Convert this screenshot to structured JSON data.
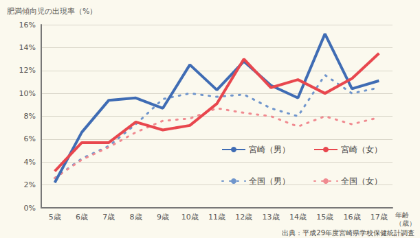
{
  "chart_data": {
    "type": "line",
    "y_label": "肥満傾向児の出現率（%）",
    "x_label": "年齢（歳）",
    "source": "出典：平成29年度宮崎県学校保健統計調査",
    "categories": [
      "5歳",
      "6歳",
      "7歳",
      "8歳",
      "9歳",
      "10歳",
      "11歳",
      "12歳",
      "13歳",
      "14歳",
      "15歳",
      "16歳",
      "17歳"
    ],
    "series": [
      {
        "name": "宮崎（男）",
        "color": "#3f6cb4",
        "line_style": "solid",
        "values": [
          2.2,
          6.6,
          9.4,
          9.6,
          8.7,
          12.5,
          10.3,
          12.8,
          10.7,
          9.6,
          15.2,
          10.4,
          11.1
        ]
      },
      {
        "name": "宮崎（女）",
        "color": "#e8474e",
        "line_style": "solid",
        "values": [
          3.2,
          5.7,
          5.7,
          7.5,
          6.8,
          7.2,
          9.1,
          13.0,
          10.5,
          11.2,
          10.0,
          11.3,
          13.5
        ]
      },
      {
        "name": "全国（男）",
        "color": "#6f95cc",
        "line_style": "dotted",
        "values": [
          2.6,
          4.3,
          5.4,
          7.3,
          9.5,
          10.0,
          9.7,
          9.9,
          8.7,
          8.0,
          11.6,
          10.0,
          10.5
        ]
      },
      {
        "name": "全国（女）",
        "color": "#f08a90",
        "line_style": "dotted",
        "values": [
          2.6,
          4.2,
          5.3,
          6.6,
          7.6,
          7.8,
          8.7,
          8.3,
          8.0,
          7.1,
          8.0,
          7.3,
          7.9
        ]
      }
    ],
    "ylim": [
      0,
      16
    ],
    "yticks": [
      {
        "value": 0,
        "label": "0%"
      },
      {
        "value": 2,
        "label": "2%"
      },
      {
        "value": 4,
        "label": "4%"
      },
      {
        "value": 6,
        "label": "6%"
      },
      {
        "value": 8,
        "label": "8%"
      },
      {
        "value": 10,
        "label": "10%"
      },
      {
        "value": 12,
        "label": "12%"
      },
      {
        "value": 14,
        "label": "14%"
      },
      {
        "value": 16,
        "label": "16%"
      }
    ],
    "grid": true,
    "legend": "lower right"
  }
}
